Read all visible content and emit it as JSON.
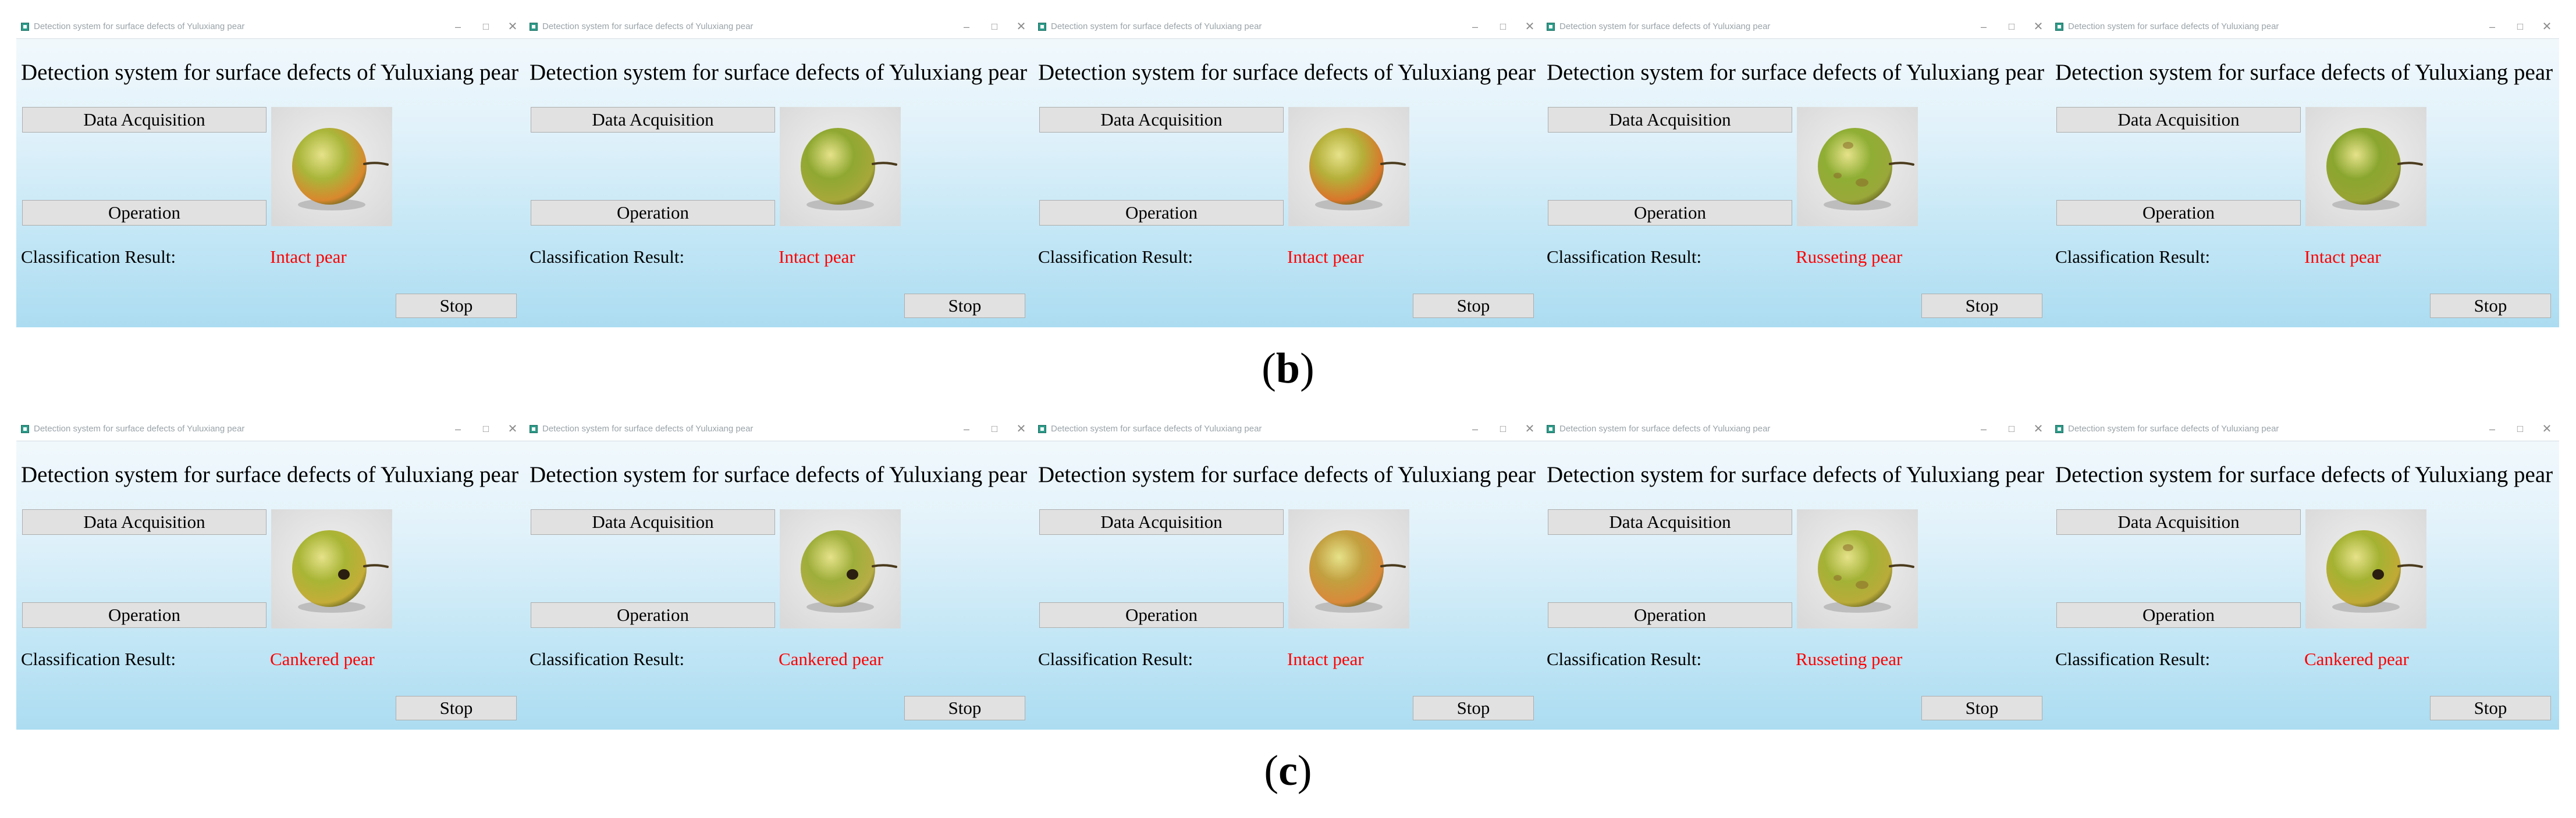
{
  "window_title": "Detection system for surface defects of Yuluxiang pear",
  "heading": "Detection system for surface defects of Yuluxiang pear",
  "buttons": {
    "data_acquisition": "Data Acquisition",
    "operation": "Operation",
    "stop": "Stop"
  },
  "result_label": "Classification Result:",
  "titlebar_glyphs": {
    "minimize": "–",
    "maximize": "□",
    "close": "✕"
  },
  "rows": [
    {
      "caption_letter": "b",
      "windows": [
        {
          "result": "Intact pear",
          "pear": {
            "color": "#a9b63a",
            "blush": "#d9882e",
            "defect": "none"
          }
        },
        {
          "result": "Intact pear",
          "pear": {
            "color": "#8fa831",
            "blush": "#a7a83a",
            "defect": "none"
          }
        },
        {
          "result": "Intact pear",
          "pear": {
            "color": "#b5b03a",
            "blush": "#d9762b",
            "defect": "none"
          }
        },
        {
          "result": "Russeting pear",
          "pear": {
            "color": "#8fae34",
            "blush": "#9aa83a",
            "defect": "russet"
          }
        },
        {
          "result": "Intact pear",
          "pear": {
            "color": "#8aa62f",
            "blush": "#98a434",
            "defect": "none"
          }
        }
      ]
    },
    {
      "caption_letter": "c",
      "windows": [
        {
          "result": "Cankered pear",
          "pear": {
            "color": "#a8b535",
            "blush": "#c4ad38",
            "defect": "canker"
          }
        },
        {
          "result": "Cankered pear",
          "pear": {
            "color": "#9eae3a",
            "blush": "#b7ad46",
            "defect": "canker"
          }
        },
        {
          "result": "Intact pear",
          "pear": {
            "color": "#c2a040",
            "blush": "#d98a3a",
            "defect": "none"
          }
        },
        {
          "result": "Russeting pear",
          "pear": {
            "color": "#a3b236",
            "blush": "#b9ab3a",
            "defect": "russet"
          }
        },
        {
          "result": "Cankered pear",
          "pear": {
            "color": "#a4b232",
            "blush": "#c1aa36",
            "defect": "canker"
          }
        }
      ]
    }
  ]
}
